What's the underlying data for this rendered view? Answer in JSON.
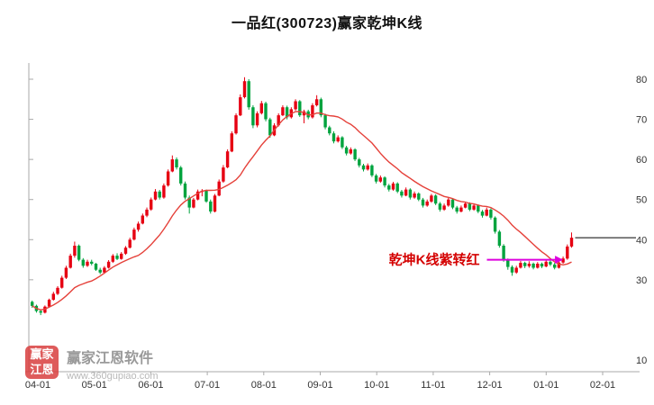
{
  "header": {
    "title": "一品红(300723)赢家乾坤K线"
  },
  "watermark": {
    "logo_chars": [
      "赢家",
      "江恩"
    ],
    "name": "赢家江恩软件",
    "url": "www.360gupiao.com"
  },
  "chart_data": {
    "type": "candlestick",
    "title": "一品红(300723)赢家乾坤K线",
    "legend": [],
    "grid": false,
    "x_axis": {
      "labels": [
        "04-01",
        "05-01",
        "06-01",
        "07-01",
        "08-01",
        "09-01",
        "10-01",
        "11-01",
        "12-01",
        "01-01",
        "02-01"
      ]
    },
    "y_axis": {
      "ticks": [
        80,
        70,
        60,
        50,
        40,
        30,
        10
      ],
      "range": [
        10,
        82
      ],
      "position": "right"
    },
    "series": {
      "name": "daily-kline",
      "start_month": -0.1,
      "end_month": 9.45,
      "ma_period": 15,
      "up_color": "#e60012",
      "down_color": "#00a33e",
      "ma_color": "#e5413a",
      "candles_ohlc": [
        [
          24.5,
          24.8,
          23.0,
          23.5
        ],
        [
          23.5,
          23.8,
          21.8,
          22.2
        ],
        [
          22.2,
          22.6,
          21.2,
          21.8
        ],
        [
          21.8,
          23.6,
          21.6,
          23.3
        ],
        [
          23.3,
          25.3,
          23.1,
          25.0
        ],
        [
          25.0,
          27.0,
          24.8,
          26.5
        ],
        [
          26.5,
          28.4,
          26.2,
          28.0
        ],
        [
          28.0,
          31.0,
          27.8,
          30.5
        ],
        [
          30.5,
          33.5,
          30.2,
          33.0
        ],
        [
          33.0,
          36.5,
          32.8,
          36.0
        ],
        [
          36.0,
          39.5,
          35.5,
          38.5
        ],
        [
          38.5,
          38.8,
          34.6,
          35.0
        ],
        [
          35.0,
          35.4,
          33.0,
          33.5
        ],
        [
          33.5,
          35.0,
          33.2,
          34.5
        ],
        [
          34.5,
          35.0,
          33.6,
          34.0
        ],
        [
          34.0,
          34.2,
          32.2,
          32.5
        ],
        [
          32.5,
          33.0,
          31.4,
          31.8
        ],
        [
          31.8,
          33.4,
          31.6,
          33.0
        ],
        [
          33.0,
          34.9,
          32.8,
          34.5
        ],
        [
          34.5,
          36.4,
          34.2,
          36.0
        ],
        [
          36.0,
          36.6,
          34.9,
          35.2
        ],
        [
          35.2,
          36.9,
          35.0,
          36.5
        ],
        [
          36.5,
          38.4,
          36.2,
          38.0
        ],
        [
          38.0,
          40.5,
          37.8,
          40.0
        ],
        [
          40.0,
          43.0,
          39.8,
          42.5
        ],
        [
          42.5,
          44.5,
          42.0,
          44.0
        ],
        [
          44.0,
          46.5,
          43.8,
          46.0
        ],
        [
          46.0,
          48.0,
          45.6,
          47.5
        ],
        [
          47.5,
          50.5,
          47.2,
          50.0
        ],
        [
          50.0,
          52.6,
          49.8,
          52.0
        ],
        [
          52.0,
          52.4,
          50.0,
          50.5
        ],
        [
          50.5,
          54.0,
          50.2,
          53.5
        ],
        [
          53.5,
          57.5,
          53.2,
          57.0
        ],
        [
          57.0,
          61.0,
          56.8,
          60.0
        ],
        [
          60.0,
          60.5,
          57.5,
          58.0
        ],
        [
          58.0,
          58.4,
          53.5,
          54.0
        ],
        [
          54.0,
          54.5,
          50.0,
          50.5
        ],
        [
          50.5,
          51.0,
          46.5,
          48.0
        ],
        [
          48.0,
          50.4,
          47.8,
          50.0
        ],
        [
          50.0,
          52.5,
          49.8,
          52.0
        ],
        [
          52.0,
          52.6,
          50.8,
          52.2
        ],
        [
          52.2,
          52.5,
          49.2,
          49.5
        ],
        [
          49.5,
          50.0,
          46.5,
          47.0
        ],
        [
          47.0,
          51.4,
          46.8,
          51.0
        ],
        [
          51.0,
          55.0,
          50.8,
          54.5
        ],
        [
          54.5,
          58.6,
          54.2,
          58.0
        ],
        [
          58.0,
          62.5,
          57.8,
          62.0
        ],
        [
          62.0,
          67.0,
          61.8,
          66.5
        ],
        [
          66.5,
          71.5,
          66.2,
          71.0
        ],
        [
          71.0,
          76.2,
          70.8,
          75.5
        ],
        [
          75.5,
          80.5,
          75.2,
          79.5
        ],
        [
          79.5,
          80.0,
          72.4,
          73.0
        ],
        [
          73.0,
          73.5,
          67.8,
          68.5
        ],
        [
          68.5,
          72.0,
          68.0,
          71.5
        ],
        [
          71.5,
          74.6,
          71.2,
          74.0
        ],
        [
          74.0,
          74.4,
          69.5,
          70.0
        ],
        [
          70.0,
          70.4,
          65.4,
          66.0
        ],
        [
          66.0,
          69.0,
          65.8,
          68.5
        ],
        [
          68.5,
          71.5,
          68.2,
          71.0
        ],
        [
          71.0,
          73.5,
          70.8,
          73.0
        ],
        [
          73.0,
          73.4,
          70.0,
          70.5
        ],
        [
          70.5,
          73.0,
          70.2,
          72.5
        ],
        [
          72.5,
          75.0,
          72.2,
          74.5
        ],
        [
          74.5,
          74.8,
          70.6,
          71.0
        ],
        [
          71.0,
          72.4,
          69.0,
          72.0
        ],
        [
          72.0,
          72.4,
          70.0,
          70.5
        ],
        [
          70.5,
          74.0,
          70.2,
          73.5
        ],
        [
          73.5,
          76.0,
          73.2,
          75.0
        ],
        [
          75.0,
          75.4,
          70.5,
          71.0
        ],
        [
          71.0,
          71.4,
          67.5,
          68.0
        ],
        [
          68.0,
          68.4,
          66.0,
          66.5
        ],
        [
          66.5,
          67.0,
          64.0,
          64.5
        ],
        [
          64.5,
          66.0,
          64.2,
          65.5
        ],
        [
          65.5,
          65.8,
          62.6,
          63.0
        ],
        [
          63.0,
          63.4,
          61.0,
          61.5
        ],
        [
          61.5,
          63.0,
          61.2,
          62.5
        ],
        [
          62.5,
          62.8,
          59.6,
          60.0
        ],
        [
          60.0,
          60.4,
          58.0,
          58.5
        ],
        [
          58.5,
          58.9,
          57.0,
          57.5
        ],
        [
          57.5,
          59.0,
          57.2,
          58.5
        ],
        [
          58.5,
          58.8,
          55.6,
          56.0
        ],
        [
          56.0,
          56.4,
          54.0,
          54.5
        ],
        [
          54.5,
          56.0,
          54.2,
          55.5
        ],
        [
          55.5,
          55.8,
          53.0,
          53.5
        ],
        [
          53.5,
          53.9,
          52.0,
          52.5
        ],
        [
          52.5,
          54.4,
          52.2,
          54.0
        ],
        [
          54.0,
          54.3,
          51.6,
          52.0
        ],
        [
          52.0,
          52.4,
          50.5,
          51.0
        ],
        [
          51.0,
          53.0,
          50.8,
          52.5
        ],
        [
          52.5,
          52.8,
          50.0,
          50.5
        ],
        [
          50.5,
          52.0,
          50.2,
          51.5
        ],
        [
          51.5,
          51.8,
          49.6,
          50.0
        ],
        [
          50.0,
          50.4,
          48.0,
          48.5
        ],
        [
          48.5,
          50.0,
          48.2,
          49.5
        ],
        [
          49.5,
          51.4,
          49.2,
          51.0
        ],
        [
          51.0,
          51.3,
          48.6,
          49.0
        ],
        [
          49.0,
          49.4,
          47.0,
          47.5
        ],
        [
          47.5,
          49.0,
          47.2,
          48.5
        ],
        [
          48.5,
          50.4,
          48.2,
          50.0
        ],
        [
          50.0,
          50.3,
          47.6,
          48.0
        ],
        [
          48.0,
          48.4,
          46.5,
          47.0
        ],
        [
          47.0,
          48.5,
          46.8,
          48.0
        ],
        [
          48.0,
          49.4,
          47.8,
          49.0
        ],
        [
          49.0,
          49.3,
          47.1,
          47.5
        ],
        [
          47.5,
          49.0,
          47.2,
          48.5
        ],
        [
          48.5,
          48.8,
          46.6,
          47.0
        ],
        [
          47.0,
          47.4,
          45.5,
          46.0
        ],
        [
          46.0,
          48.0,
          45.8,
          47.5
        ],
        [
          47.5,
          47.8,
          45.0,
          45.5
        ],
        [
          45.5,
          45.8,
          41.5,
          42.0
        ],
        [
          42.0,
          42.4,
          38.0,
          38.5
        ],
        [
          38.5,
          38.9,
          34.5,
          35.0
        ],
        [
          35.0,
          35.3,
          32.5,
          33.2
        ],
        [
          33.2,
          33.6,
          31.0,
          31.8
        ],
        [
          31.8,
          33.5,
          31.5,
          33.0
        ],
        [
          33.0,
          34.7,
          32.8,
          34.2
        ],
        [
          34.2,
          34.5,
          32.9,
          33.4
        ],
        [
          33.4,
          34.6,
          33.0,
          34.0
        ],
        [
          34.0,
          34.3,
          32.6,
          33.0
        ],
        [
          33.0,
          34.4,
          32.8,
          34.0
        ],
        [
          34.0,
          34.3,
          32.9,
          33.3
        ],
        [
          33.3,
          34.9,
          33.1,
          34.5
        ],
        [
          34.5,
          34.8,
          33.4,
          33.8
        ],
        [
          33.8,
          34.2,
          32.6,
          33.0
        ],
        [
          33.0,
          34.7,
          32.8,
          34.3
        ],
        [
          34.3,
          35.8,
          34.0,
          35.3
        ],
        [
          35.3,
          38.8,
          35.0,
          38.3
        ],
        [
          38.3,
          41.8,
          38.0,
          40.5
        ]
      ]
    },
    "price_line": {
      "value": 40.5,
      "color": "#000000"
    },
    "annotation": {
      "text": "乾坤K线紫转红",
      "color": "#d40000",
      "arrow_color": "#dd00dd",
      "value": 35.0,
      "from_month": 7.95,
      "to_month": 9.3
    }
  }
}
